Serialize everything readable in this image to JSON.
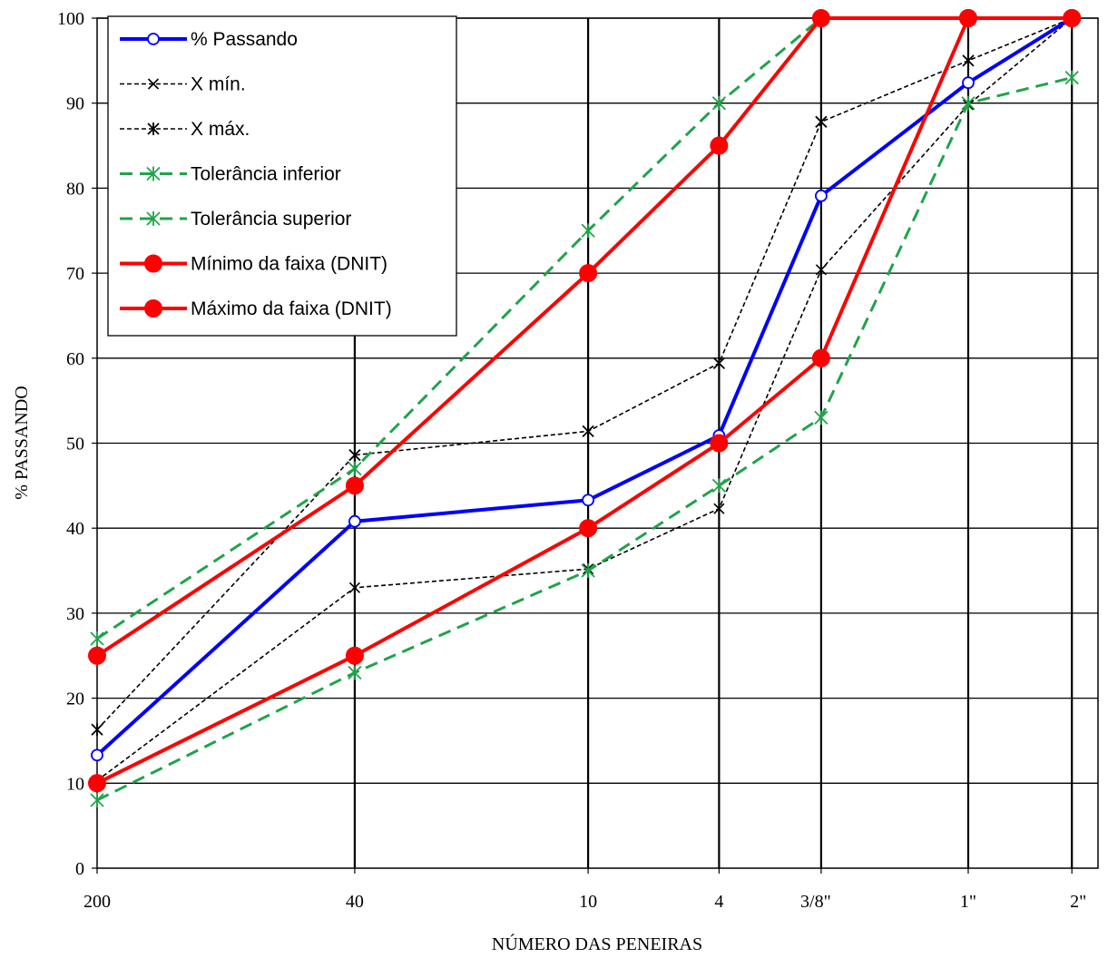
{
  "chart_data": {
    "type": "line",
    "xlabel": "NÚMERO DAS PENEIRAS",
    "ylabel": "% PASSANDO",
    "ylim": [
      0,
      100
    ],
    "yticks": [
      0,
      10,
      20,
      30,
      40,
      50,
      60,
      70,
      80,
      90,
      100
    ],
    "categories": [
      "200",
      "40",
      "10",
      "4",
      "3/8\"",
      "1\"",
      "2\""
    ],
    "x_opening_mm": [
      0.075,
      0.42,
      2.0,
      4.8,
      9.5,
      25.4,
      50.8
    ],
    "x_scale": "log",
    "grid": true,
    "legend_position": "top-left",
    "series": [
      {
        "name": "% Passando",
        "color": "#0000ff",
        "style": "solid",
        "marker": "open-circle",
        "values": [
          13.3,
          40.8,
          43.3,
          50.9,
          79.1,
          92.4,
          100
        ]
      },
      {
        "name": "X mín.",
        "color": "#000000",
        "style": "dashed",
        "marker": "x",
        "values": [
          10.3,
          33.0,
          35.2,
          42.3,
          70.4,
          89.8,
          100
        ]
      },
      {
        "name": "X máx.",
        "color": "#000000",
        "style": "dashed",
        "marker": "asterisk",
        "values": [
          16.3,
          48.6,
          51.4,
          59.4,
          87.8,
          95.0,
          100
        ]
      },
      {
        "name": "Tolerância inferior",
        "color": "#21a34a",
        "style": "dashed",
        "marker": "green-asterisk",
        "values": [
          8.0,
          23.0,
          35.0,
          45.0,
          53.0,
          90.0,
          93.0
        ]
      },
      {
        "name": "Tolerância superior",
        "color": "#21a34a",
        "style": "dashed",
        "marker": "green-asterisk",
        "values": [
          27.0,
          47.0,
          75.0,
          90.0,
          100,
          100,
          100
        ]
      },
      {
        "name": "Mínimo da faixa (DNIT)",
        "color": "#ff0000",
        "style": "solid",
        "marker": "filled-circle",
        "values": [
          10,
          25,
          40,
          50,
          60,
          100,
          100
        ]
      },
      {
        "name": "Máximo da faixa (DNIT)",
        "color": "#ff0000",
        "style": "solid",
        "marker": "filled-circle",
        "values": [
          25,
          45,
          70,
          85,
          100,
          100,
          100
        ]
      }
    ]
  }
}
